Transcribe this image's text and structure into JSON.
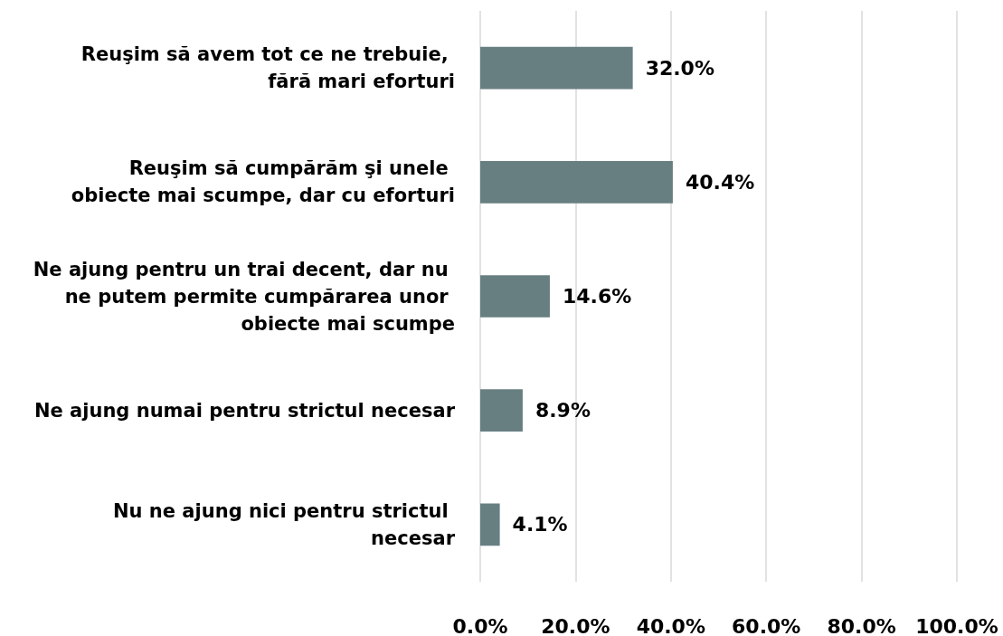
{
  "chart_data": {
    "type": "bar",
    "orientation": "horizontal",
    "categories": [
      "Reuşim să avem tot ce ne trebuie, fără mari eforturi",
      "Reuşim să cumpărăm şi unele obiecte mai scumpe, dar cu eforturi",
      "Ne ajung pentru un trai decent, dar nu ne putem permite cumpărarea unor obiecte mai scumpe",
      "Ne ajung numai pentru strictul necesar",
      "Nu ne ajung nici pentru strictul necesar"
    ],
    "values": [
      32.0,
      40.4,
      14.6,
      8.9,
      4.1
    ],
    "value_labels": [
      "32.0%",
      "40.4%",
      "14.6%",
      "8.9%",
      "4.1%"
    ],
    "color": "#687f82",
    "xlim": [
      0,
      100
    ],
    "xticks": [
      {
        "value": 0,
        "label": "0.0%"
      },
      {
        "value": 20,
        "label": "20.0%"
      },
      {
        "value": 40,
        "label": "40.0%"
      },
      {
        "value": 60,
        "label": "60.0%"
      },
      {
        "value": 80,
        "label": "80.0%"
      },
      {
        "value": 100,
        "label": "100.0%"
      }
    ],
    "grid": "x"
  }
}
